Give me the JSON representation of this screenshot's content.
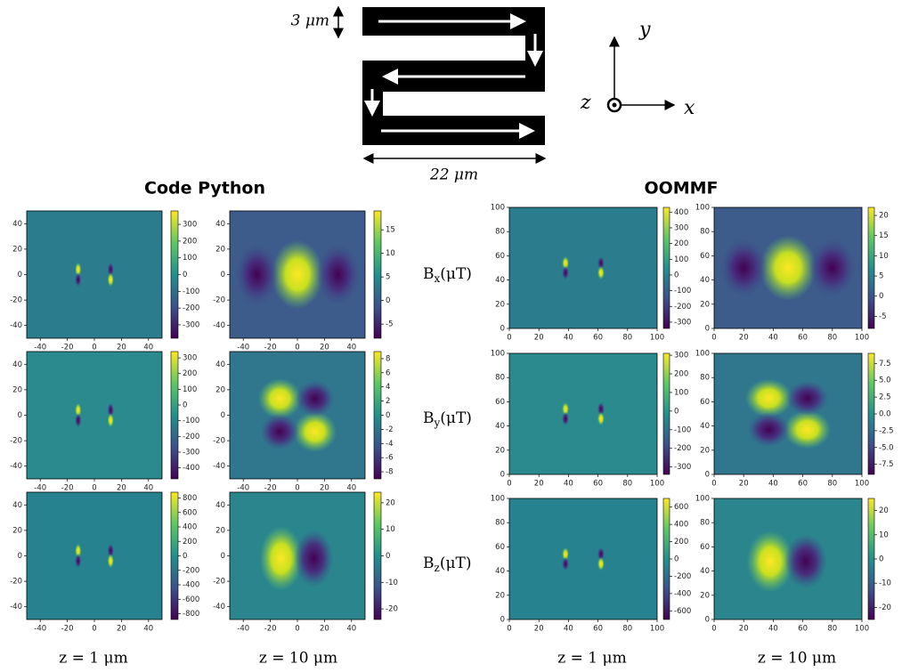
{
  "diagram": {
    "width_label": "3 μm",
    "length_label": "22 μm",
    "axis_y": "y",
    "axis_x": "x",
    "axis_z": "z"
  },
  "columns": {
    "python": "Code Python",
    "oommf": "OOMMF"
  },
  "rows": [
    {
      "base": "B",
      "sub": "x",
      "unit": "(μT)"
    },
    {
      "base": "B",
      "sub": "y",
      "unit": "(μT)"
    },
    {
      "base": "B",
      "sub": "z",
      "unit": "(μT)"
    }
  ],
  "z_labels": [
    "z  =  1 μm",
    "z  =  10 μm",
    "z  =  1 μm",
    "z  =  10 μm"
  ],
  "python_axes": {
    "lim": [
      -50,
      50
    ],
    "ticks": [
      -40,
      -20,
      0,
      20,
      40
    ]
  },
  "oommf_axes": {
    "lim": [
      0,
      100
    ],
    "ticks": [
      0,
      20,
      40,
      60,
      80,
      100
    ]
  },
  "panels": [
    {
      "cbar_lim": [
        -380,
        380
      ],
      "cbar_ticks": [
        300,
        200,
        100,
        0,
        -100,
        -200,
        -300
      ]
    },
    {
      "cbar_lim": [
        -470,
        340
      ],
      "cbar_ticks": [
        300,
        200,
        100,
        0,
        -100,
        -200,
        -300,
        -400
      ]
    },
    {
      "cbar_lim": [
        -880,
        880
      ],
      "cbar_ticks": [
        800,
        600,
        400,
        200,
        0,
        -200,
        -400,
        -600,
        -800
      ]
    },
    {
      "cbar_lim": [
        -8,
        19
      ],
      "cbar_ticks": [
        15,
        10,
        5,
        0,
        -5
      ]
    },
    {
      "cbar_lim": [
        -9,
        9
      ],
      "cbar_ticks": [
        8,
        6,
        4,
        2,
        0,
        -2,
        -4,
        -6,
        -8
      ]
    },
    {
      "cbar_lim": [
        -24,
        24
      ],
      "cbar_ticks": [
        20,
        10,
        0,
        -10,
        -20
      ]
    },
    {
      "cbar_lim": [
        -340,
        430
      ],
      "cbar_ticks": [
        400,
        300,
        200,
        100,
        0,
        -100,
        -200,
        -300
      ]
    },
    {
      "cbar_lim": [
        -340,
        310
      ],
      "cbar_ticks": [
        300,
        200,
        100,
        0,
        -100,
        -200,
        -300
      ]
    },
    {
      "cbar_lim": [
        -700,
        700
      ],
      "cbar_ticks": [
        600,
        400,
        200,
        0,
        -200,
        -400,
        -600
      ]
    },
    {
      "cbar_lim": [
        -8,
        22
      ],
      "cbar_ticks": [
        20,
        15,
        10,
        5,
        0,
        -5
      ]
    },
    {
      "cbar_lim": [
        -9,
        9
      ],
      "cbar_ticks": [
        {
          "value": 7.5,
          "label": "7.5"
        },
        {
          "value": 5,
          "label": "5.0"
        },
        {
          "value": 2.5,
          "label": "2.5"
        },
        {
          "value": 0,
          "label": "0.0"
        },
        {
          "value": -2.5,
          "label": "-2.5"
        },
        {
          "value": -5,
          "label": "-5.0"
        },
        {
          "value": -7.5,
          "label": "-7.5"
        }
      ]
    },
    {
      "cbar_lim": [
        -25,
        25
      ],
      "cbar_ticks": [
        20,
        10,
        0,
        -10,
        -20
      ]
    }
  ]
}
